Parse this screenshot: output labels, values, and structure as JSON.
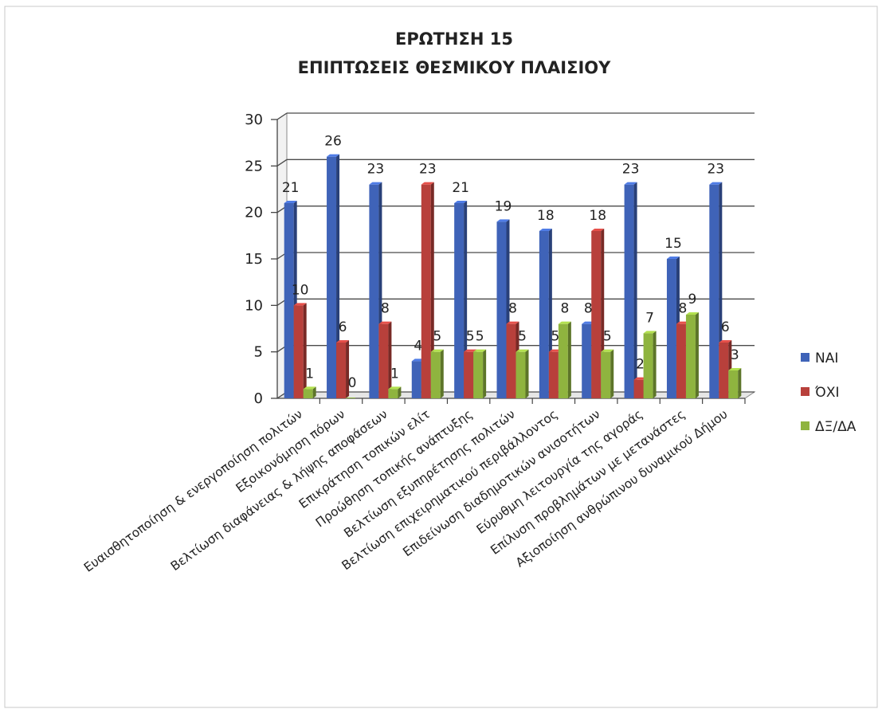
{
  "chart_data": {
    "type": "bar",
    "title": "ΕΡΩΤΗΣΗ 15",
    "subtitle": "ΕΠΙΠΤΩΣΕΙΣ ΘΕΣΜΙΚΟΥ ΠΛΑΙΣΙΟΥ",
    "categories": [
      "Ευαισθητοποίηση & ενεργοποίηση πολιτών",
      "Εξοικονόμηση πόρων",
      "Βελτίωση διαφάνειας & λήψης αποφάσεων",
      "Επικράτηση τοπικών ελίτ",
      "Προώθηση τοπικής ανάπτυξης",
      "Βελτίωση εξυπηρέτησης πολιτών",
      "Βελτίωση επιχειρηματικού περιβάλλοντος",
      "Επιδείνωση διαδημοτικών ανισοτήτων",
      "Εύρυθμη λειτουργία της αγοράς",
      "Επίλυση προβλημάτων με μετανάστες",
      "Αξιοποίηση ανθρώπινου δυναμικού Δήμου"
    ],
    "series": [
      {
        "name": "ΝΑΙ",
        "color": "#3f63b8",
        "values": [
          21,
          26,
          23,
          4,
          21,
          19,
          18,
          8,
          23,
          15,
          23
        ]
      },
      {
        "name": "ΌΧΙ",
        "color": "#b8403b",
        "values": [
          10,
          6,
          8,
          23,
          5,
          8,
          5,
          18,
          2,
          8,
          6
        ]
      },
      {
        "name": "ΔΞ/ΔΑ",
        "color": "#8fb43f",
        "values": [
          1,
          0,
          1,
          5,
          5,
          5,
          8,
          5,
          7,
          9,
          3
        ]
      }
    ],
    "ylim": [
      0,
      30
    ],
    "yticks": [
      0,
      5,
      10,
      15,
      20,
      25,
      30
    ],
    "grid": true,
    "legend_position": "right"
  }
}
